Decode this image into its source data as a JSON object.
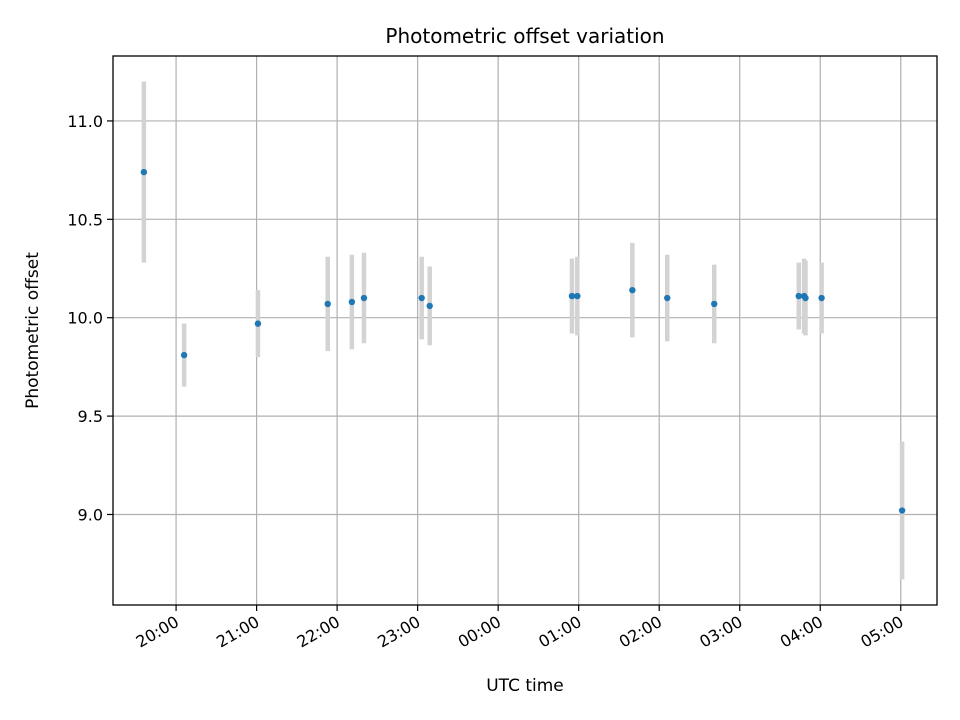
{
  "chart_data": {
    "type": "scatter",
    "title": "Photometric offset variation",
    "xlabel": "UTC time",
    "ylabel": "Photometric offset",
    "x_axis_kind": "time",
    "xlim": [
      "19:13",
      "05:27"
    ],
    "ylim": [
      8.54,
      11.33
    ],
    "x_ticks": [
      "20:00",
      "21:00",
      "22:00",
      "23:00",
      "00:00",
      "01:00",
      "02:00",
      "03:00",
      "04:00",
      "05:00"
    ],
    "y_ticks": [
      "9.0",
      "9.5",
      "10.0",
      "10.5",
      "11.0"
    ],
    "grid": true,
    "series": [
      {
        "marker_color": "#1f77b4",
        "errorbar_color": "#d3d3d3",
        "points": [
          {
            "x": "19:36",
            "y": 10.74,
            "err": 0.46
          },
          {
            "x": "20:06",
            "y": 9.81,
            "err": 0.16
          },
          {
            "x": "21:01",
            "y": 9.97,
            "err": 0.17
          },
          {
            "x": "21:53",
            "y": 10.07,
            "err": 0.24
          },
          {
            "x": "22:11",
            "y": 10.08,
            "err": 0.24
          },
          {
            "x": "22:20",
            "y": 10.1,
            "err": 0.23
          },
          {
            "x": "23:03",
            "y": 10.1,
            "err": 0.21
          },
          {
            "x": "23:09",
            "y": 10.06,
            "err": 0.2
          },
          {
            "x": "00:55",
            "y": 10.11,
            "err": 0.19
          },
          {
            "x": "00:59",
            "y": 10.11,
            "err": 0.2
          },
          {
            "x": "01:40",
            "y": 10.14,
            "err": 0.24
          },
          {
            "x": "02:06",
            "y": 10.1,
            "err": 0.22
          },
          {
            "x": "02:41",
            "y": 10.07,
            "err": 0.2
          },
          {
            "x": "03:44",
            "y": 10.11,
            "err": 0.17
          },
          {
            "x": "03:48",
            "y": 10.11,
            "err": 0.19
          },
          {
            "x": "03:49",
            "y": 10.1,
            "err": 0.19
          },
          {
            "x": "04:01",
            "y": 10.1,
            "err": 0.18
          },
          {
            "x": "05:01",
            "y": 9.02,
            "err": 0.35
          }
        ]
      }
    ]
  }
}
